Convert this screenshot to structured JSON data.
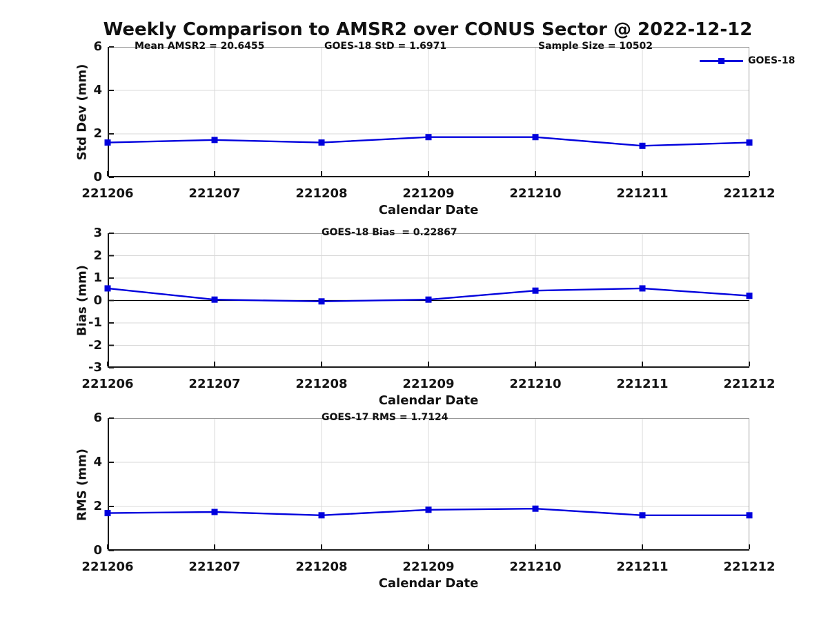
{
  "figure": {
    "title": "Weekly Comparison to AMSR2 over CONUS Sector @ 2022-12-12",
    "background_color": "#ffffff",
    "line_color": "#0000DD",
    "grid_color": "#d8d8d8",
    "legend_label": "GOES-18"
  },
  "chart_data": [
    {
      "type": "line",
      "panel": "std-dev",
      "annotations": [
        "Mean AMSR2 = 20.6455",
        "GOES-18 StD = 1.6971",
        "Sample Size = 10502"
      ],
      "x": [
        "221206",
        "221207",
        "221208",
        "221209",
        "221210",
        "221211",
        "221212"
      ],
      "series": [
        {
          "name": "GOES-18",
          "values": [
            1.6,
            1.72,
            1.6,
            1.85,
            1.85,
            1.45,
            1.6
          ]
        }
      ],
      "xlabel": "Calendar Date",
      "ylabel": "Std Dev (mm)",
      "ylim": [
        0,
        6
      ],
      "yticks": [
        0,
        2,
        4,
        6
      ],
      "grid": true,
      "marker": "filled-square",
      "legend": {
        "label": "GOES-18",
        "position": "top-right-outside"
      }
    },
    {
      "type": "line",
      "panel": "bias",
      "annotations": [
        "GOES-18 Bias  = 0.22867"
      ],
      "x": [
        "221206",
        "221207",
        "221208",
        "221209",
        "221210",
        "221211",
        "221212"
      ],
      "series": [
        {
          "name": "GOES-18",
          "values": [
            0.54,
            0.04,
            -0.04,
            0.04,
            0.44,
            0.54,
            0.21
          ]
        }
      ],
      "xlabel": "Calendar Date",
      "ylabel": "Bias (mm)",
      "ylim": [
        -3,
        3
      ],
      "yticks": [
        -3,
        -2,
        -1,
        0,
        1,
        2,
        3
      ],
      "zero_line": true,
      "grid": true,
      "marker": "filled-square"
    },
    {
      "type": "line",
      "panel": "rms",
      "annotations": [
        "GOES-17 RMS = 1.7124"
      ],
      "x": [
        "221206",
        "221207",
        "221208",
        "221209",
        "221210",
        "221211",
        "221212"
      ],
      "series": [
        {
          "name": "GOES-18",
          "values": [
            1.7,
            1.75,
            1.6,
            1.85,
            1.9,
            1.6,
            1.6
          ]
        }
      ],
      "xlabel": "Calendar Date",
      "ylabel": "RMS (mm)",
      "ylim": [
        0,
        6
      ],
      "yticks": [
        0,
        2,
        4,
        6
      ],
      "grid": true,
      "marker": "filled-square"
    }
  ]
}
